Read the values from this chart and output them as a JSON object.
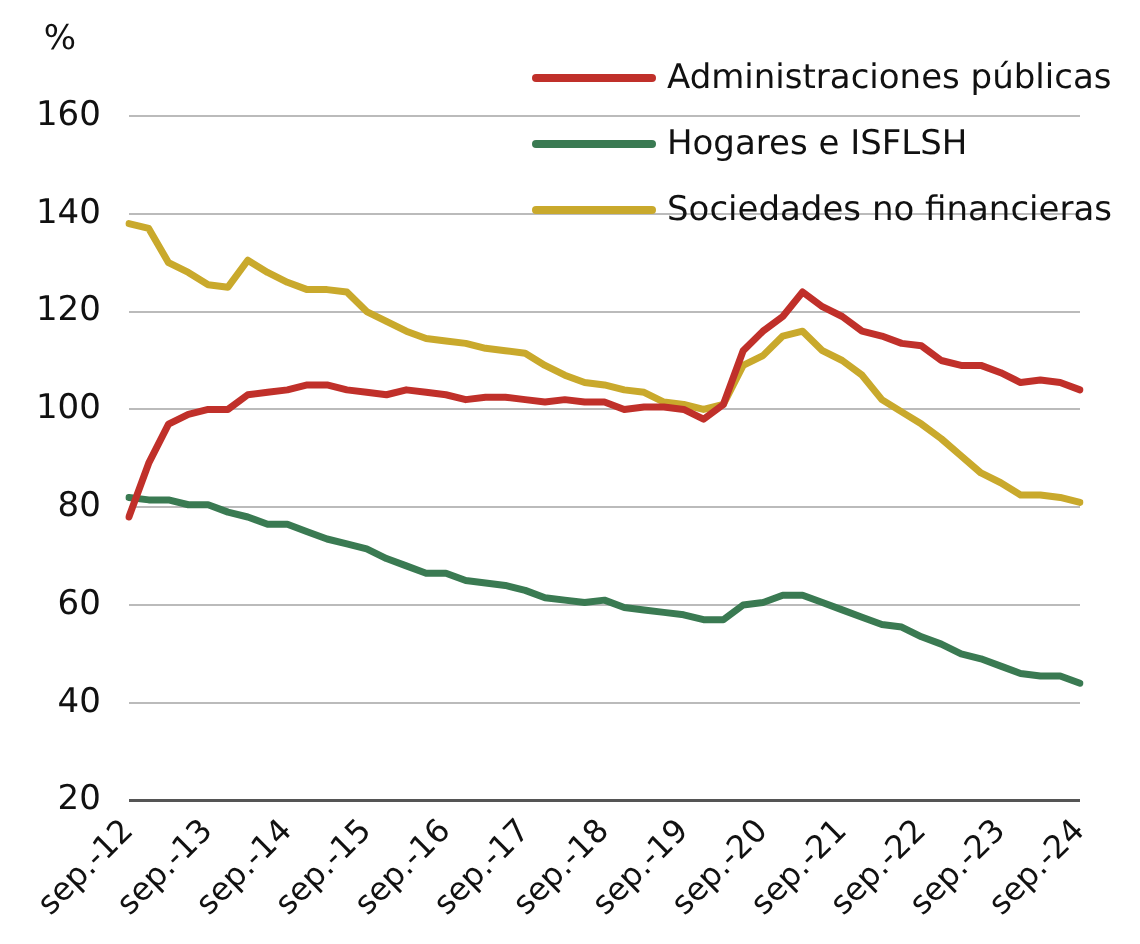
{
  "chart_data": {
    "type": "line",
    "ylabel": "%",
    "categories": [
      "sep.-12",
      null,
      null,
      null,
      "sep.-13",
      null,
      null,
      null,
      "sep.-14",
      null,
      null,
      null,
      "sep.-15",
      null,
      null,
      null,
      "sep.-16",
      null,
      null,
      null,
      "sep.-17",
      null,
      null,
      null,
      "sep.-18",
      null,
      null,
      null,
      "sep.-19",
      null,
      null,
      null,
      "sep.-20",
      null,
      null,
      null,
      "sep.-21",
      null,
      null,
      null,
      "sep.-22",
      null,
      null,
      null,
      "sep.-23",
      null,
      null,
      null,
      "sep.-24"
    ],
    "series": [
      {
        "name": "Administraciones públicas",
        "color": "#c0302a",
        "values": [
          78,
          89,
          97,
          99,
          100,
          100,
          103,
          103.5,
          104,
          105,
          105,
          104,
          103.5,
          103,
          104,
          103.5,
          103,
          102,
          102.5,
          102.5,
          102,
          101.5,
          102,
          101.5,
          101.5,
          100,
          100.5,
          100.5,
          100,
          98,
          101,
          112,
          116,
          119,
          124,
          121,
          119,
          116,
          115,
          113.5,
          113,
          110,
          109,
          109,
          107.5,
          105.5,
          106,
          105.5,
          104
        ]
      },
      {
        "name": "Hogares e ISFLSH",
        "color": "#3a7a52",
        "values": [
          82,
          81.5,
          81.5,
          80.5,
          80.5,
          79,
          78,
          76.5,
          76.5,
          75,
          73.5,
          72.5,
          71.5,
          69.5,
          68,
          66.5,
          66.5,
          65,
          64.5,
          64,
          63,
          61.5,
          61,
          60.5,
          61,
          59.5,
          59,
          58.5,
          58,
          57,
          57,
          60,
          60.5,
          62,
          62,
          60.5,
          59,
          57.5,
          56,
          55.5,
          53.5,
          52,
          50,
          49,
          47.5,
          46,
          45.5,
          45.5,
          44
        ]
      },
      {
        "name": "Sociedades no financieras",
        "color": "#c9a92c",
        "values": [
          138,
          137,
          130,
          128,
          125.5,
          125,
          130.5,
          128,
          126,
          124.5,
          124.5,
          124,
          120,
          118,
          116,
          114.5,
          114,
          113.5,
          112.5,
          112,
          111.5,
          109,
          107,
          105.5,
          105,
          104,
          103.5,
          101.5,
          101,
          100,
          101,
          109,
          111,
          115,
          116,
          112,
          110,
          107,
          102,
          99.5,
          97,
          94,
          90.5,
          87,
          85,
          82.5,
          82.5,
          82,
          81
        ]
      }
    ],
    "ylim": [
      20,
      160
    ],
    "yticks": [
      20,
      40,
      60,
      80,
      100,
      120,
      140,
      160
    ],
    "grid": "y",
    "legend": "top right",
    "marker": "none",
    "line_style": "solid"
  }
}
